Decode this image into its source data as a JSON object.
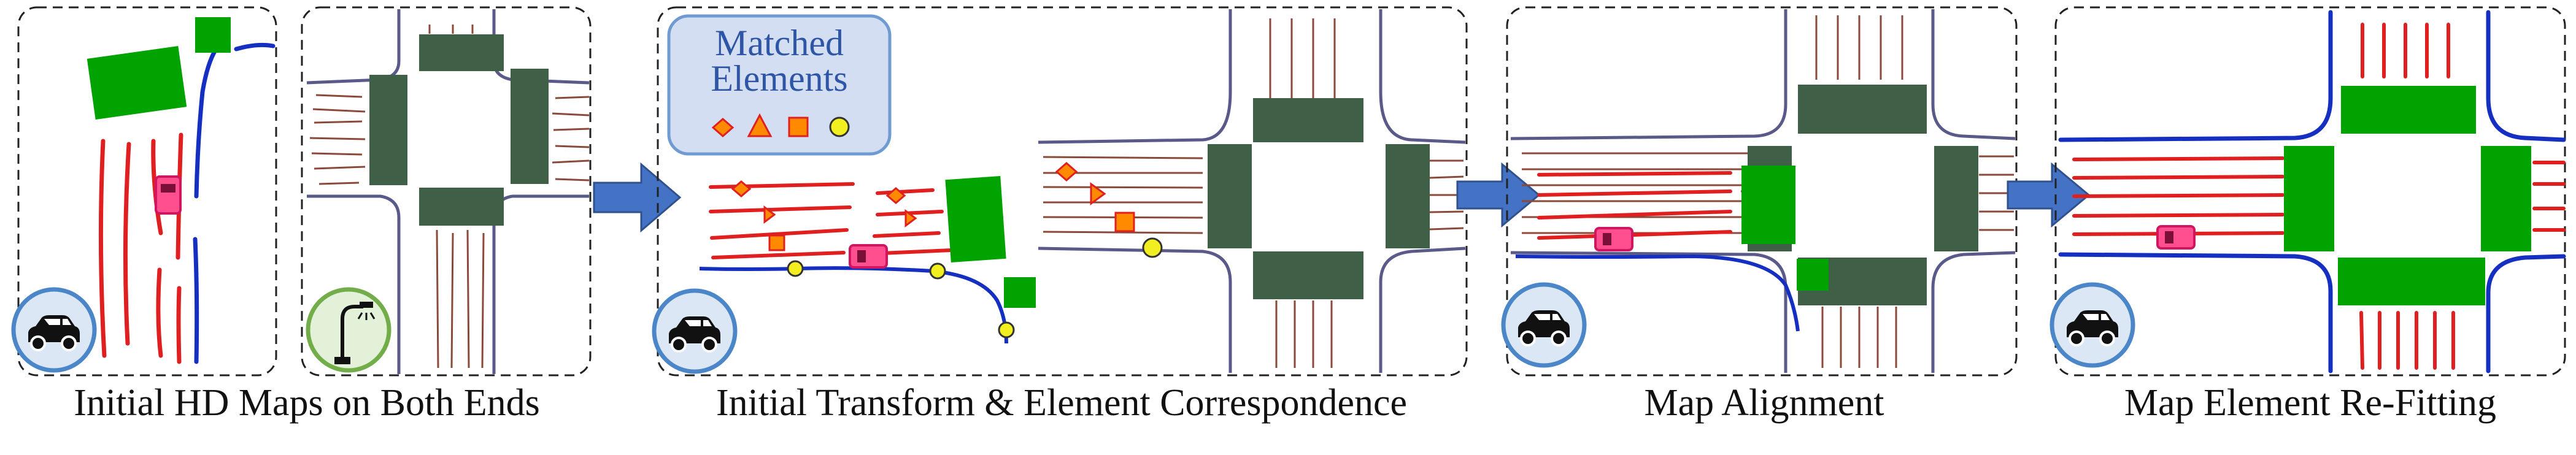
{
  "captions": {
    "initial_maps": "Initial HD Maps on Both Ends",
    "initial_transform": "Initial Transform & Element Correspondence",
    "alignment": "Map Alignment",
    "refitting": "Map Element Re-Fitting"
  },
  "legend": {
    "line1": "Matched",
    "line2": "Elements",
    "marker_types": [
      "diamond",
      "triangle",
      "square",
      "circle"
    ]
  },
  "icons": [
    "vehicle-icon",
    "roadside-unit-icon",
    "arrow-icon"
  ],
  "colors": {
    "lane_line": "#e02020",
    "road_boundary": "#1530c0",
    "road_edge": "#5a5a8a",
    "vehicle_crosswalk": "#00a300",
    "infrastructure_crosswalk": "#3f5f47",
    "marker_fill": "#ff8a00",
    "circle_marker": "#f2ef20",
    "car": "#ff4f8f",
    "flow_arrow": "#4472c4"
  }
}
